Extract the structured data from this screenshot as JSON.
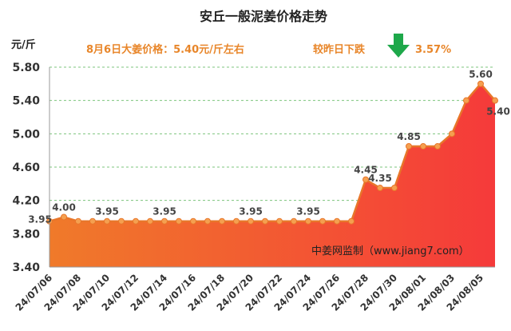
{
  "chart_data": {
    "type": "area",
    "title": "安丘一般泥姜价格走势",
    "y_label": "元/斤",
    "annotations": [
      "8月6日大姜价格：5.40元/斤左右",
      "较昨日下跌",
      "3.57%",
      "中姜网监制（www.jiang7.com）"
    ],
    "categories": [
      "24/07/06",
      null,
      "24/07/08",
      null,
      "24/07/10",
      null,
      "24/07/12",
      null,
      "24/07/14",
      null,
      "24/07/16",
      null,
      "24/07/18",
      null,
      "24/07/20",
      null,
      "24/07/22",
      null,
      "24/07/24",
      null,
      "24/07/26",
      null,
      "24/07/28",
      null,
      "24/07/30",
      null,
      "24/08/01",
      null,
      "24/08/03",
      null,
      "24/08/05",
      null
    ],
    "values": [
      3.95,
      4.0,
      3.95,
      3.95,
      3.95,
      3.95,
      3.95,
      3.95,
      3.95,
      3.95,
      3.95,
      3.95,
      3.95,
      3.95,
      3.95,
      3.95,
      3.95,
      3.95,
      3.95,
      3.95,
      3.95,
      3.95,
      4.45,
      4.35,
      4.35,
      4.85,
      4.85,
      4.85,
      5.0,
      5.4,
      5.6,
      5.4
    ],
    "value_labels": [
      "3.95",
      "4.00",
      null,
      null,
      "3.95",
      null,
      null,
      null,
      "3.95",
      null,
      null,
      null,
      null,
      null,
      "3.95",
      null,
      null,
      null,
      "3.95",
      null,
      null,
      null,
      "4.45",
      "4.35",
      null,
      "4.85",
      null,
      null,
      null,
      null,
      "5.60",
      "5.40"
    ],
    "color": "#e8762a",
    "ylim": [
      3.4,
      5.8
    ],
    "yticks": [
      {
        "value": 3.4,
        "label": "3.40"
      },
      {
        "value": 3.8,
        "label": "3.80"
      },
      {
        "value": 4.2,
        "label": "4.20"
      },
      {
        "value": 4.6,
        "label": "4.60"
      },
      {
        "value": 5.0,
        "label": "5.00"
      },
      {
        "value": 5.4,
        "label": "5.40"
      },
      {
        "value": 5.8,
        "label": "5.80"
      }
    ],
    "grid": true
  }
}
